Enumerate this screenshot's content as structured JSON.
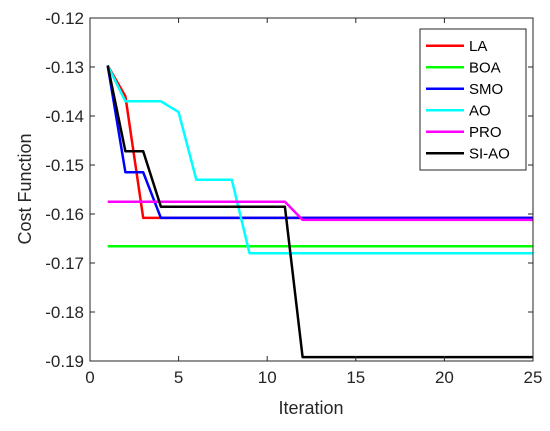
{
  "chart_data": {
    "type": "line",
    "xlabel": "Iteration",
    "ylabel": "Cost Function",
    "xlim": [
      0,
      25
    ],
    "ylim": [
      -0.19,
      -0.12
    ],
    "xticks": [
      0,
      5,
      10,
      15,
      20,
      25
    ],
    "xtick_labels": [
      "0",
      "5",
      "10",
      "15",
      "20",
      "25"
    ],
    "yticks": [
      -0.12,
      -0.13,
      -0.14,
      -0.15,
      -0.16,
      -0.17,
      -0.18,
      -0.19
    ],
    "ytick_labels": [
      "-0.12",
      "-0.13",
      "-0.14",
      "-0.15",
      "-0.16",
      "-0.17",
      "-0.18",
      "-0.19"
    ],
    "grid": false,
    "legend_position": "top-right",
    "x": [
      1,
      2,
      3,
      4,
      5,
      6,
      7,
      8,
      9,
      10,
      11,
      12,
      13,
      14,
      15,
      16,
      17,
      18,
      19,
      20,
      21,
      22,
      23,
      24,
      25
    ],
    "series": [
      {
        "name": "LA",
        "color": "#ff0000",
        "values": [
          -0.1297,
          -0.136,
          -0.1608,
          -0.1608,
          -0.1608,
          -0.1608,
          -0.1608,
          -0.1608,
          -0.1608,
          -0.1608,
          -0.1608,
          -0.1608,
          -0.1608,
          -0.1608,
          -0.1608,
          -0.1608,
          -0.1608,
          -0.1608,
          -0.1608,
          -0.1608,
          -0.1608,
          -0.1608,
          -0.1608,
          -0.1608,
          -0.1608
        ]
      },
      {
        "name": "BOA",
        "color": "#00ff00",
        "values": [
          -0.1666,
          -0.1666,
          -0.1666,
          -0.1666,
          -0.1666,
          -0.1666,
          -0.1666,
          -0.1666,
          -0.1666,
          -0.1666,
          -0.1666,
          -0.1666,
          -0.1666,
          -0.1666,
          -0.1666,
          -0.1666,
          -0.1666,
          -0.1666,
          -0.1666,
          -0.1666,
          -0.1666,
          -0.1666,
          -0.1666,
          -0.1666,
          -0.1666
        ]
      },
      {
        "name": "SMO",
        "color": "#0000ff",
        "values": [
          -0.1297,
          -0.1515,
          -0.1515,
          -0.1608,
          -0.1608,
          -0.1608,
          -0.1608,
          -0.1608,
          -0.1608,
          -0.1608,
          -0.1608,
          -0.1608,
          -0.1608,
          -0.1608,
          -0.1608,
          -0.1608,
          -0.1608,
          -0.1608,
          -0.1608,
          -0.1608,
          -0.1608,
          -0.1608,
          -0.1608,
          -0.1608,
          -0.1608
        ]
      },
      {
        "name": "AO",
        "color": "#00ffff",
        "values": [
          -0.1297,
          -0.137,
          -0.137,
          -0.137,
          -0.1392,
          -0.153,
          -0.153,
          -0.153,
          -0.168,
          -0.168,
          -0.168,
          -0.168,
          -0.168,
          -0.168,
          -0.168,
          -0.168,
          -0.168,
          -0.168,
          -0.168,
          -0.168,
          -0.168,
          -0.168,
          -0.168,
          -0.168,
          -0.168
        ]
      },
      {
        "name": "PRO",
        "color": "#ff00ff",
        "values": [
          -0.1575,
          -0.1575,
          -0.1575,
          -0.1575,
          -0.1575,
          -0.1575,
          -0.1575,
          -0.1575,
          -0.1575,
          -0.1575,
          -0.1575,
          -0.1612,
          -0.1612,
          -0.1612,
          -0.1612,
          -0.1612,
          -0.1612,
          -0.1612,
          -0.1612,
          -0.1612,
          -0.1612,
          -0.1612,
          -0.1612,
          -0.1612,
          -0.1612
        ]
      },
      {
        "name": "SI-AO",
        "color": "#000000",
        "values": [
          -0.1297,
          -0.1472,
          -0.1472,
          -0.1585,
          -0.1585,
          -0.1585,
          -0.1585,
          -0.1585,
          -0.1585,
          -0.1585,
          -0.1585,
          -0.1892,
          -0.1892,
          -0.1892,
          -0.1892,
          -0.1892,
          -0.1892,
          -0.1892,
          -0.1892,
          -0.1892,
          -0.1892,
          -0.1892,
          -0.1892,
          -0.1892,
          -0.1892
        ]
      }
    ]
  }
}
